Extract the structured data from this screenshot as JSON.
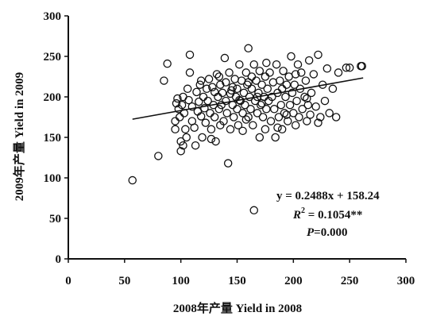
{
  "chart_data": {
    "type": "scatter",
    "title": "",
    "xlabel": "2008年产量  Yield in 2008",
    "ylabel": "2009年产量  Yield in 2009",
    "xlim": [
      0,
      300
    ],
    "ylim": [
      0,
      300
    ],
    "xticks": [
      "0",
      "50",
      "100",
      "150",
      "200",
      "250",
      "300"
    ],
    "yticks": [
      "0",
      "50",
      "100",
      "150",
      "200",
      "250",
      "300"
    ],
    "grid": false,
    "legend": "none",
    "marker": "open-circle",
    "colors": {
      "marker": "#111111",
      "trendline": "#111111",
      "axis": "#111111"
    },
    "trendline": {
      "slope": 0.2488,
      "intercept": 158.24,
      "x_range": [
        57,
        262
      ]
    },
    "annotations": {
      "equation": "y = 0.2488x + 158.24",
      "r_squared_label": "R",
      "r_squared_sup": "2",
      "r_squared_value": " = 0.1054**",
      "p_label": "P",
      "p_value": "=0.000"
    },
    "points": [
      [
        57,
        97
      ],
      [
        80,
        127
      ],
      [
        85,
        220
      ],
      [
        88,
        241
      ],
      [
        95,
        170
      ],
      [
        96,
        192
      ],
      [
        97,
        198
      ],
      [
        98,
        185
      ],
      [
        99,
        175
      ],
      [
        100,
        145
      ],
      [
        100,
        133
      ],
      [
        101,
        190
      ],
      [
        102,
        200
      ],
      [
        103,
        180
      ],
      [
        104,
        160
      ],
      [
        105,
        150
      ],
      [
        106,
        210
      ],
      [
        107,
        196
      ],
      [
        108,
        230
      ],
      [
        108,
        252
      ],
      [
        110,
        188
      ],
      [
        110,
        170
      ],
      [
        112,
        162
      ],
      [
        113,
        140
      ],
      [
        114,
        206
      ],
      [
        115,
        182
      ],
      [
        116,
        194
      ],
      [
        117,
        215
      ],
      [
        118,
        176
      ],
      [
        119,
        150
      ],
      [
        120,
        200
      ],
      [
        121,
        186
      ],
      [
        122,
        168
      ],
      [
        123,
        210
      ],
      [
        124,
        195
      ],
      [
        125,
        222
      ],
      [
        126,
        180
      ],
      [
        127,
        160
      ],
      [
        128,
        212
      ],
      [
        129,
        190
      ],
      [
        130,
        206
      ],
      [
        130,
        175
      ],
      [
        131,
        145
      ],
      [
        132,
        228
      ],
      [
        133,
        200
      ],
      [
        134,
        185
      ],
      [
        135,
        215
      ],
      [
        135,
        165
      ],
      [
        136,
        190
      ],
      [
        137,
        205
      ],
      [
        138,
        170
      ],
      [
        139,
        248
      ],
      [
        140,
        218
      ],
      [
        140,
        195
      ],
      [
        141,
        180
      ],
      [
        142,
        118
      ],
      [
        143,
        230
      ],
      [
        144,
        160
      ],
      [
        145,
        208
      ],
      [
        146,
        190
      ],
      [
        147,
        175
      ],
      [
        148,
        222
      ],
      [
        149,
        200
      ],
      [
        150,
        185
      ],
      [
        150,
        210
      ],
      [
        151,
        165
      ],
      [
        152,
        240
      ],
      [
        153,
        195
      ],
      [
        154,
        220
      ],
      [
        155,
        180
      ],
      [
        155,
        158
      ],
      [
        156,
        205
      ],
      [
        157,
        190
      ],
      [
        158,
        230
      ],
      [
        159,
        215
      ],
      [
        160,
        260
      ],
      [
        160,
        175
      ],
      [
        161,
        200
      ],
      [
        162,
        185
      ],
      [
        163,
        225
      ],
      [
        163,
        210
      ],
      [
        164,
        165
      ],
      [
        165,
        60
      ],
      [
        165,
        240
      ],
      [
        166,
        195
      ],
      [
        167,
        220
      ],
      [
        168,
        180
      ],
      [
        169,
        205
      ],
      [
        170,
        232
      ],
      [
        170,
        150
      ],
      [
        171,
        190
      ],
      [
        172,
        215
      ],
      [
        173,
        175
      ],
      [
        174,
        200
      ],
      [
        175,
        225
      ],
      [
        175,
        160
      ],
      [
        176,
        185
      ],
      [
        177,
        210
      ],
      [
        178,
        195
      ],
      [
        179,
        230
      ],
      [
        180,
        170
      ],
      [
        181,
        200
      ],
      [
        182,
        218
      ],
      [
        183,
        185
      ],
      [
        184,
        150
      ],
      [
        185,
        240
      ],
      [
        186,
        205
      ],
      [
        187,
        175
      ],
      [
        188,
        220
      ],
      [
        189,
        190
      ],
      [
        190,
        160
      ],
      [
        190,
        210
      ],
      [
        191,
        232
      ],
      [
        192,
        180
      ],
      [
        193,
        200
      ],
      [
        194,
        215
      ],
      [
        195,
        170
      ],
      [
        196,
        225
      ],
      [
        197,
        190
      ],
      [
        198,
        250
      ],
      [
        199,
        205
      ],
      [
        200,
        180
      ],
      [
        201,
        215
      ],
      [
        202,
        165
      ],
      [
        203,
        195
      ],
      [
        204,
        240
      ],
      [
        205,
        175
      ],
      [
        206,
        210
      ],
      [
        207,
        230
      ],
      [
        208,
        185
      ],
      [
        210,
        200
      ],
      [
        211,
        220
      ],
      [
        212,
        170
      ],
      [
        213,
        190
      ],
      [
        214,
        245
      ],
      [
        215,
        178
      ],
      [
        216,
        205
      ],
      [
        218,
        228
      ],
      [
        220,
        188
      ],
      [
        222,
        252
      ],
      [
        224,
        175
      ],
      [
        226,
        215
      ],
      [
        228,
        195
      ],
      [
        230,
        235
      ],
      [
        232,
        180
      ],
      [
        235,
        210
      ],
      [
        238,
        175
      ],
      [
        240,
        230
      ],
      [
        247,
        236
      ],
      [
        250,
        236
      ],
      [
        260,
        238
      ],
      [
        261,
        238
      ],
      [
        95,
        160
      ],
      [
        102,
        140
      ],
      [
        118,
        220
      ],
      [
        127,
        148
      ],
      [
        134,
        225
      ],
      [
        146,
        212
      ],
      [
        158,
        172
      ],
      [
        168,
        200
      ],
      [
        176,
        242
      ],
      [
        186,
        162
      ],
      [
        194,
        178
      ],
      [
        202,
        228
      ],
      [
        212,
        198
      ],
      [
        222,
        168
      ],
      [
        152,
        196
      ],
      [
        144,
        204
      ],
      [
        160,
        218
      ],
      [
        172,
        192
      ]
    ]
  }
}
